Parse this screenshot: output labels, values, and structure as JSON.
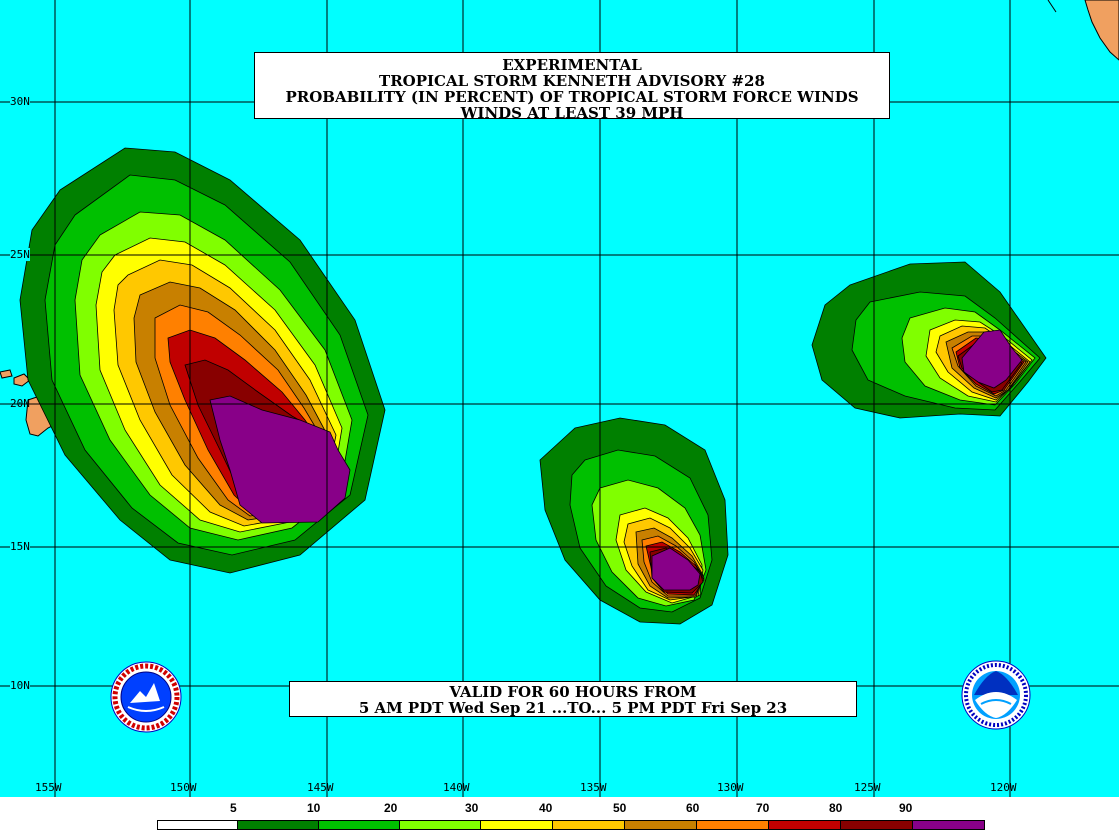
{
  "title": {
    "line1": "EXPERIMENTAL",
    "line2": "TROPICAL STORM KENNETH ADVISORY #28",
    "line3": "PROBABILITY (IN PERCENT) OF TROPICAL STORM FORCE WINDS",
    "line4": "WINDS AT LEAST 39 MPH"
  },
  "valid": {
    "line1": "VALID FOR 60 HOURS FROM",
    "line2": "5 AM PDT Wed Sep 21 ...TO... 5 PM PDT Fri Sep 23"
  },
  "latitude_labels": [
    "30N",
    "25N",
    "20N",
    "15N",
    "10N"
  ],
  "longitude_labels": [
    "155W",
    "150W",
    "145W",
    "140W",
    "135W",
    "130W",
    "125W",
    "120W"
  ],
  "legend": {
    "labels": [
      "5",
      "10",
      "20",
      "30",
      "40",
      "50",
      "60",
      "70",
      "80",
      "90"
    ],
    "colors": [
      "#ffffff",
      "#008000",
      "#00c000",
      "#80ff00",
      "#ffff00",
      "#ffc800",
      "#c88000",
      "#ff8000",
      "#c00000",
      "#880000",
      "#880088"
    ]
  },
  "colors": {
    "ocean": "#00ffff",
    "land": "#f0a060",
    "grid": "#000000"
  },
  "logos": [
    "nws-logo",
    "noaa-logo"
  ]
}
